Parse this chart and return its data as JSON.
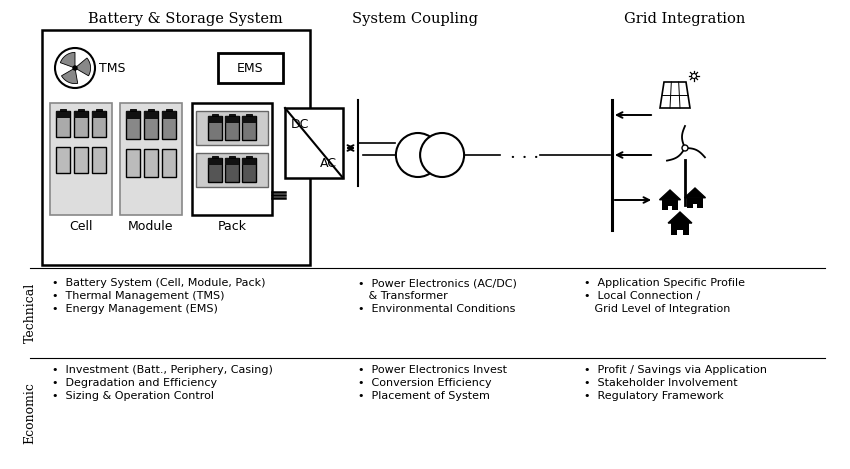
{
  "bg_color": "#ffffff",
  "title_battery": "Battery & Storage System",
  "title_coupling": "System Coupling",
  "title_grid": "Grid Integration",
  "technical_label": "Technical",
  "economic_label": "Economic",
  "tech_col1": [
    "Battery System (Cell, Module, Pack)",
    "Thermal Management (TMS)",
    "Energy Management (EMS)"
  ],
  "tech_col2": [
    "Power Electronics (AC/DC)",
    "& Transformer",
    "Environmental Conditions"
  ],
  "tech_col3": [
    "Application Specific Profile",
    "Local Connection /",
    "Grid Level of Integration"
  ],
  "eco_col1": [
    "Investment (Batt., Periphery, Casing)",
    "Degradation and Efficiency",
    "Sizing & Operation Control"
  ],
  "eco_col2": [
    "Power Electronics Invest",
    "Conversion Efficiency",
    "Placement of System"
  ],
  "eco_col3": [
    "Profit / Savings via Application",
    "Stakeholder Involvement",
    "Regulatory Framework"
  ],
  "cell_label": "Cell",
  "module_label": "Module",
  "pack_label": "Pack",
  "tms_label": "TMS",
  "ems_label": "EMS",
  "dc_label": "DC",
  "ac_label": "AC",
  "figw": 8.5,
  "figh": 4.69,
  "dpi": 100
}
